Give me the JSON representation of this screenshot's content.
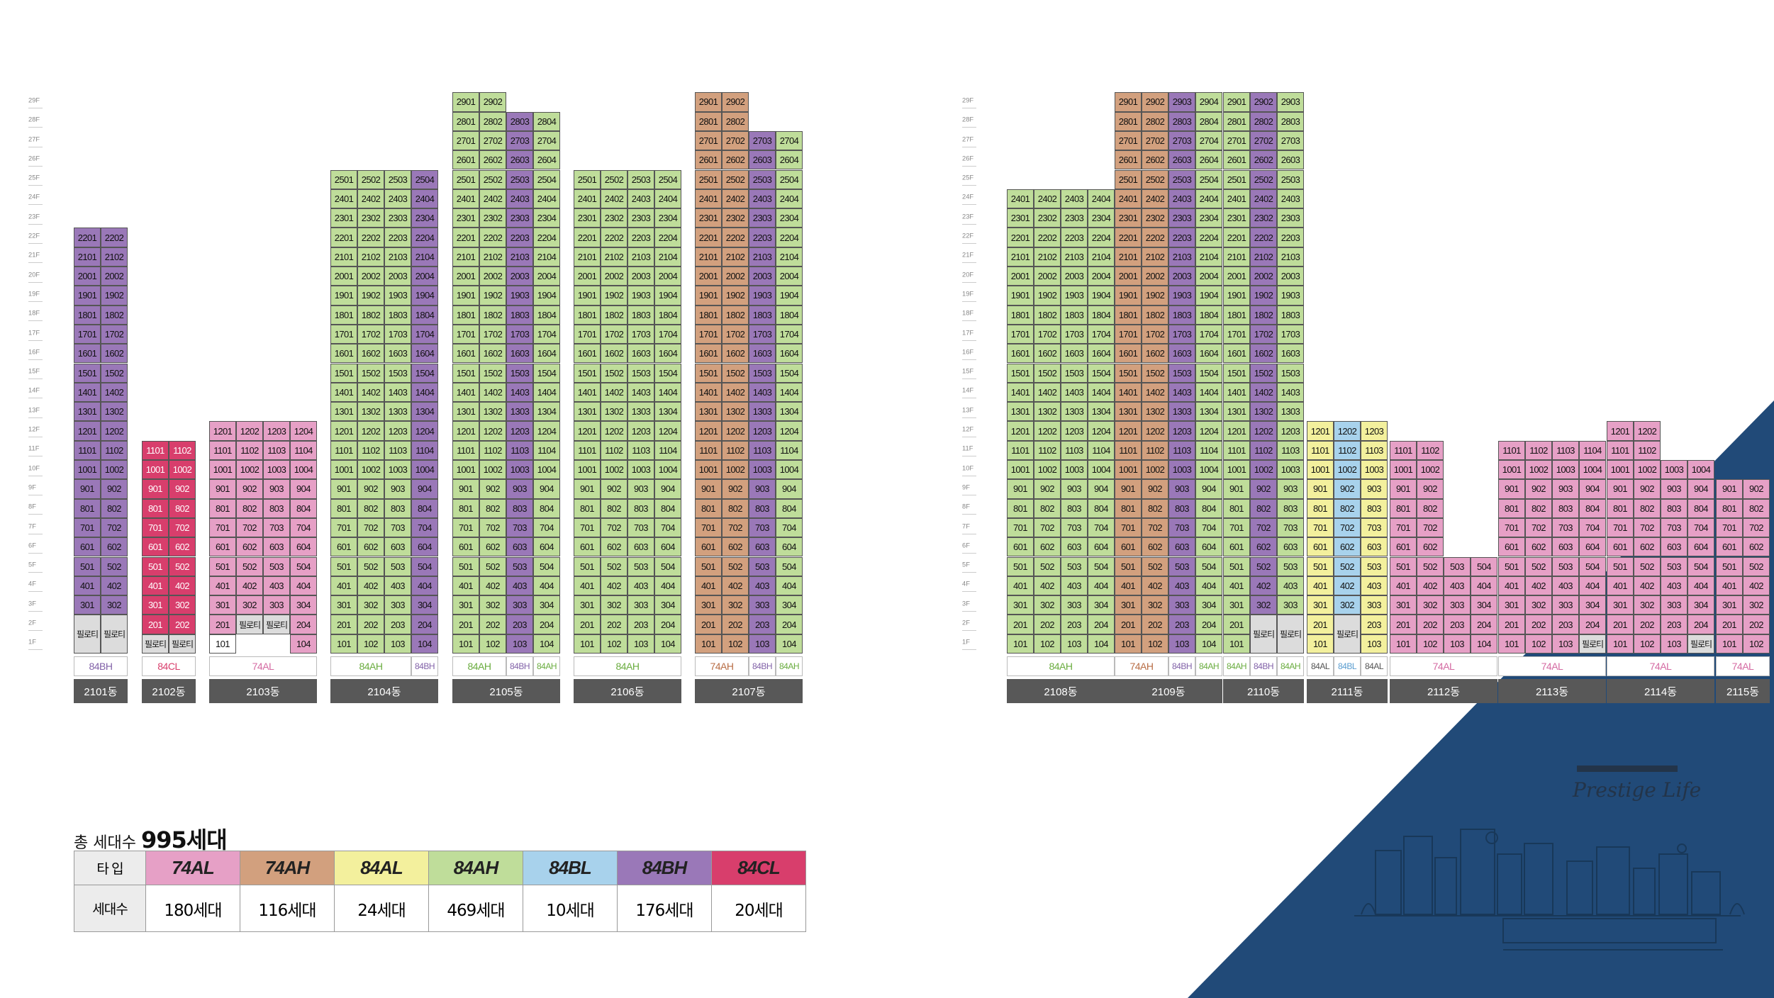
{
  "floor_labels": [
    "29F",
    "28F",
    "27F",
    "26F",
    "25F",
    "24F",
    "23F",
    "22F",
    "21F",
    "20F",
    "19F",
    "18F",
    "17F",
    "16F",
    "15F",
    "14F",
    "13F",
    "12F",
    "11F",
    "10F",
    "9F",
    "8F",
    "7F",
    "6F",
    "5F",
    "4F",
    "3F",
    "2F",
    "1F"
  ],
  "pilotis_label": "필로티",
  "colors": {
    "74AL": "#e6a0c6",
    "74AH": "#d2a07e",
    "84AL": "#f3f09d",
    "84AH": "#bfdd9a",
    "84BL": "#a8d2ec",
    "84BH": "#9a78b8",
    "84CL": "#d83e6c",
    "text_74AL": "#d46aa2",
    "text_74AH": "#b86d45",
    "text_84AL": "#555555",
    "text_84AH": "#6aac3f",
    "text_84BL": "#5a9dd0",
    "text_84BH": "#8262a8",
    "text_84CL": "#d83e6c",
    "building_label_bg": "#585858",
    "accent_navy": "#214a78"
  },
  "buildings": [
    {
      "name": "2101동",
      "cols": [
        {
          "t": "84BH",
          "f": 22
        },
        {
          "t": "84BH",
          "f": 22
        }
      ],
      "pil": [
        1,
        2
      ],
      "labels": [
        {
          "t": "84BH",
          "span": 2
        }
      ],
      "omit": []
    },
    {
      "name": "2102동",
      "cols": [
        {
          "t": "84CL",
          "f": 11
        },
        {
          "t": "84CL",
          "f": 11
        }
      ],
      "pil": [
        1
      ],
      "labels": [
        {
          "t": "84CL",
          "span": 2
        }
      ],
      "omit": [
        [
          1,
          0
        ]
      ]
    },
    {
      "name": "2103동",
      "cols": [
        {
          "t": "74AL",
          "f": 12
        },
        {
          "t": "74AL",
          "f": 12
        },
        {
          "t": "74AL",
          "f": 12
        },
        {
          "t": "74AL",
          "f": 12
        }
      ],
      "pil": [],
      "labels": [
        {
          "t": "74AL",
          "span": 4
        }
      ],
      "omit": [
        [
          1,
          1
        ],
        [
          1,
          2
        ],
        [
          2,
          1
        ],
        [
          2,
          2
        ]
      ],
      "pilCells": [
        [
          2,
          1
        ],
        [
          2,
          2
        ]
      ],
      "cell1": [
        [
          1,
          0
        ]
      ]
    },
    {
      "name": "2104동",
      "cols": [
        {
          "t": "84AH",
          "f": 25
        },
        {
          "t": "84AH",
          "f": 25
        },
        {
          "t": "84AH",
          "f": 25
        },
        {
          "t": "84BH",
          "f": 25
        }
      ],
      "pil": [],
      "labels": [
        {
          "t": "84AH",
          "span": 3
        },
        {
          "t": "84BH",
          "span": 1
        }
      ],
      "omit": []
    },
    {
      "name": "2105동",
      "cols": [
        {
          "t": "84AH",
          "f": 29
        },
        {
          "t": "84AH",
          "f": 29
        },
        {
          "t": "84BH",
          "f": 28
        },
        {
          "t": "84AH",
          "f": 28
        }
      ],
      "pil": [],
      "labels": [
        {
          "t": "84AH",
          "span": 2
        },
        {
          "t": "84BH",
          "span": 1
        },
        {
          "t": "84AH",
          "span": 1
        }
      ],
      "omit": []
    },
    {
      "name": "2106동",
      "cols": [
        {
          "t": "84AH",
          "f": 25
        },
        {
          "t": "84AH",
          "f": 25
        },
        {
          "t": "84AH",
          "f": 25
        },
        {
          "t": "84AH",
          "f": 25
        }
      ],
      "pil": [],
      "labels": [
        {
          "t": "84AH",
          "span": 4
        }
      ],
      "omit": []
    },
    {
      "name": "2107동",
      "cols": [
        {
          "t": "74AH",
          "f": 29
        },
        {
          "t": "74AH",
          "f": 29
        },
        {
          "t": "84BH",
          "f": 27
        },
        {
          "t": "84AH",
          "f": 27
        }
      ],
      "pil": [],
      "labels": [
        {
          "t": "74AH",
          "span": 2
        },
        {
          "t": "84BH",
          "span": 1
        },
        {
          "t": "84AH",
          "span": 1
        }
      ],
      "omit": []
    },
    {
      "name": "2108동",
      "cols": [
        {
          "t": "84AH",
          "f": 24
        },
        {
          "t": "84AH",
          "f": 24
        },
        {
          "t": "84AH",
          "f": 24
        },
        {
          "t": "84AH",
          "f": 24
        }
      ],
      "pil": [],
      "labels": [
        {
          "t": "84AH",
          "span": 4
        }
      ],
      "omit": []
    },
    {
      "name": "2109동",
      "cols": [
        {
          "t": "74AH",
          "f": 29
        },
        {
          "t": "74AH",
          "f": 29
        },
        {
          "t": "84BH",
          "f": 29
        },
        {
          "t": "84AH",
          "f": 29
        }
      ],
      "pil": [],
      "labels": [
        {
          "t": "74AH",
          "span": 2
        },
        {
          "t": "84BH",
          "span": 1
        },
        {
          "t": "84AH",
          "span": 1
        }
      ],
      "omit": []
    },
    {
      "name": "2110동",
      "cols": [
        {
          "t": "84AH",
          "f": 29
        },
        {
          "t": "84BH",
          "f": 29
        },
        {
          "t": "84AH",
          "f": 29
        }
      ],
      "pil": [],
      "labels": [
        {
          "t": "84AH",
          "span": 1
        },
        {
          "t": "84BH",
          "span": 1
        },
        {
          "t": "84AH",
          "span": 1
        }
      ],
      "omit": [
        [
          1,
          1
        ],
        [
          1,
          2
        ],
        [
          2,
          1
        ],
        [
          2,
          2
        ]
      ],
      "pilCells": [
        [
          1,
          1
        ],
        [
          1,
          2
        ],
        [
          2,
          1
        ],
        [
          2,
          2
        ]
      ]
    },
    {
      "name": "2111동",
      "cols": [
        {
          "t": "84AL",
          "f": 12
        },
        {
          "t": "84BL",
          "f": 12
        },
        {
          "t": "84AL",
          "f": 12
        }
      ],
      "pil": [],
      "labels": [
        {
          "t": "84AL",
          "span": 1
        },
        {
          "t": "84BL",
          "span": 1
        },
        {
          "t": "84AL",
          "span": 1
        }
      ],
      "omit": [
        [
          1,
          1
        ],
        [
          2,
          1
        ]
      ],
      "pilCells": [
        [
          1,
          1
        ],
        [
          2,
          1
        ]
      ]
    },
    {
      "name": "2112동",
      "cols": [
        {
          "t": "74AL",
          "f": 11
        },
        {
          "t": "74AL",
          "f": 11
        },
        {
          "t": "74AL",
          "f": 5
        },
        {
          "t": "74AL",
          "f": 5
        }
      ],
      "pil": [],
      "labels": [
        {
          "t": "74AL",
          "span": 4
        }
      ],
      "omit": []
    },
    {
      "name": "2113동",
      "cols": [
        {
          "t": "74AL",
          "f": 11
        },
        {
          "t": "74AL",
          "f": 11
        },
        {
          "t": "74AL",
          "f": 11
        },
        {
          "t": "74AL",
          "f": 11
        }
      ],
      "pil": [],
      "labels": [
        {
          "t": "74AL",
          "span": 4
        }
      ],
      "omit": [
        [
          1,
          3
        ]
      ],
      "pilCells": [
        [
          1,
          3
        ]
      ]
    },
    {
      "name": "2114동",
      "cols": [
        {
          "t": "74AL",
          "f": 12
        },
        {
          "t": "74AL",
          "f": 12
        },
        {
          "t": "74AL",
          "f": 10
        },
        {
          "t": "74AL",
          "f": 10
        }
      ],
      "pil": [],
      "labels": [
        {
          "t": "74AL",
          "span": 4
        }
      ],
      "omit": [
        [
          1,
          3
        ]
      ],
      "pilCells": [
        [
          1,
          3
        ]
      ]
    },
    {
      "name": "2115동",
      "cols": [
        {
          "t": "74AL",
          "f": 9
        },
        {
          "t": "74AL",
          "f": 9
        }
      ],
      "pil": [],
      "labels": [
        {
          "t": "74AL",
          "span": 2
        }
      ],
      "omit": []
    }
  ],
  "summary": {
    "title_prefix": "총 세대수",
    "title_total": "995세대",
    "type_header": "타   입",
    "count_header": "세대수",
    "rows": [
      {
        "type": "74AL",
        "count": "180세대"
      },
      {
        "type": "74AH",
        "count": "116세대"
      },
      {
        "type": "84AL",
        "count": "24세대"
      },
      {
        "type": "84AH",
        "count": "469세대"
      },
      {
        "type": "84BL",
        "count": "10세대"
      },
      {
        "type": "84BH",
        "count": "176세대"
      },
      {
        "type": "84CL",
        "count": "20세대"
      }
    ]
  },
  "brand": {
    "name": "Prestige Life"
  }
}
